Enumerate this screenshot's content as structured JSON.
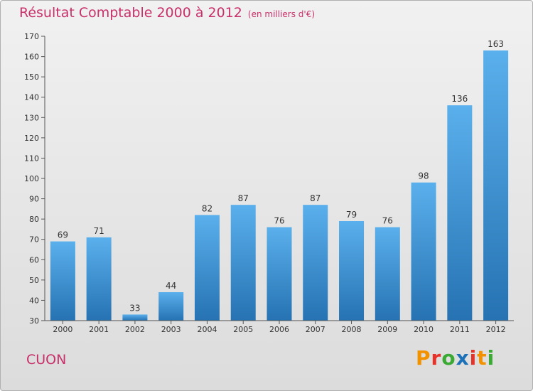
{
  "title": "Résultat Comptable 2000 à 2012",
  "subtitle": "(en milliers d'€)",
  "commune": "CUON",
  "logo": [
    "P",
    "r",
    "o",
    "x",
    "i",
    "t",
    "i"
  ],
  "colors": {
    "title": "#c8306a",
    "bar_top": "#5ab0ec",
    "bar_bottom": "#2672b2",
    "logo": [
      "#f39200",
      "#e6332a",
      "#3aaa35",
      "#1d71b8",
      "#e6332a",
      "#f39200",
      "#3aaa35"
    ]
  },
  "chart_data": {
    "type": "bar",
    "title": "Résultat Comptable 2000 à 2012",
    "xlabel": "",
    "ylabel": "",
    "categories": [
      "2000",
      "2001",
      "2002",
      "2003",
      "2004",
      "2005",
      "2006",
      "2007",
      "2008",
      "2009",
      "2010",
      "2011",
      "2012"
    ],
    "values": [
      69,
      71,
      33,
      44,
      82,
      87,
      76,
      87,
      79,
      76,
      98,
      136,
      163
    ],
    "ylim": [
      30,
      170
    ],
    "yticks": [
      30,
      40,
      50,
      60,
      70,
      80,
      90,
      100,
      110,
      120,
      130,
      140,
      150,
      160,
      170
    ],
    "grid": false
  }
}
